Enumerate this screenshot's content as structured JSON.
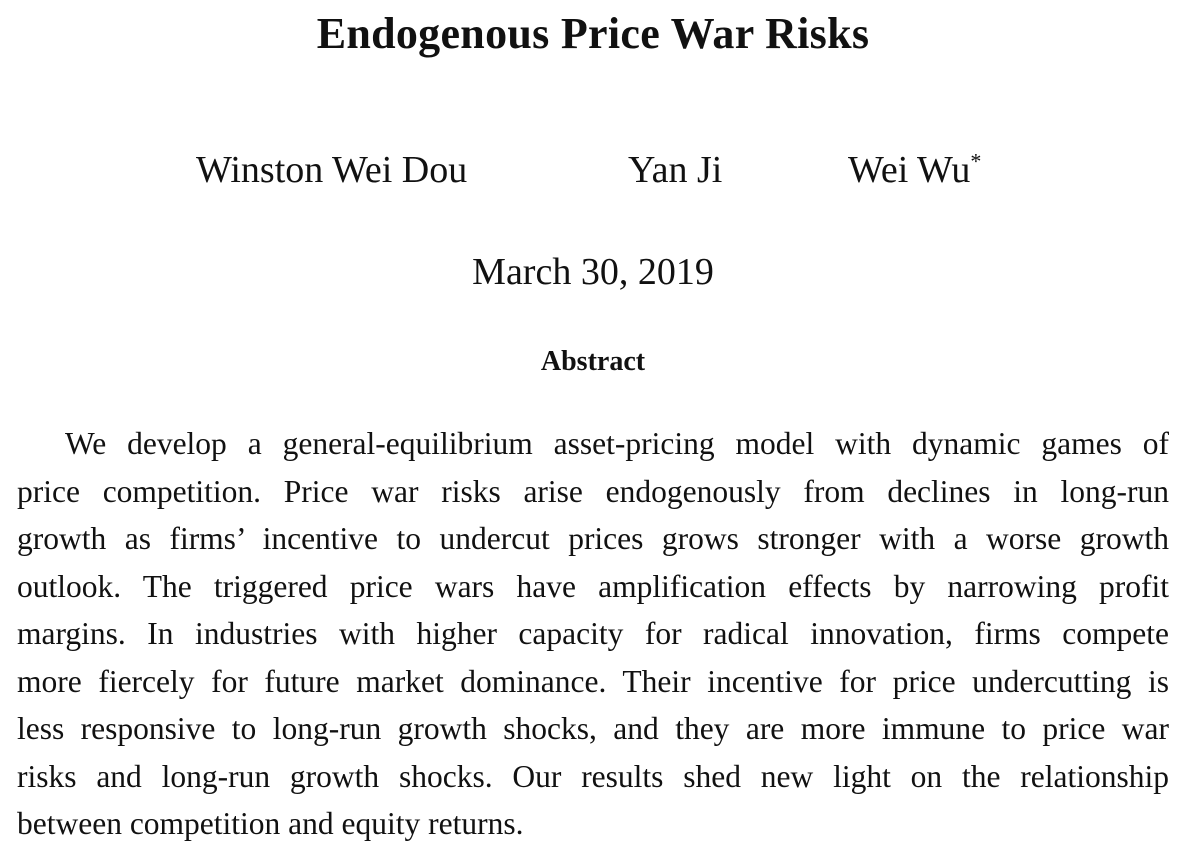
{
  "paper": {
    "title": "Endogenous Price War Risks",
    "authors": [
      {
        "name": "Winston Wei Dou",
        "mark": ""
      },
      {
        "name": "Yan Ji",
        "mark": ""
      },
      {
        "name": "Wei Wu",
        "mark": "*"
      }
    ],
    "date": "March 30, 2019",
    "abstract_heading": "Abstract",
    "abstract_lines": [
      "We develop a general-equilibrium asset-pricing model with dynamic games of",
      "price competition.  Price war risks arise endogenously from declines in long-run",
      "growth as firms’ incentive to undercut prices grows stronger with a worse growth",
      "outlook.  The triggered price wars have amplification effects by narrowing profit",
      "margins.  In industries with higher capacity for radical innovation, firms compete",
      "more fiercely for future market dominance. Their incentive for price undercutting is",
      "less responsive to long-run growth shocks, and they are more immune to price war",
      "risks and long-run growth shocks.  Our results shed new light on the relationship",
      "between competition and equity returns."
    ]
  }
}
